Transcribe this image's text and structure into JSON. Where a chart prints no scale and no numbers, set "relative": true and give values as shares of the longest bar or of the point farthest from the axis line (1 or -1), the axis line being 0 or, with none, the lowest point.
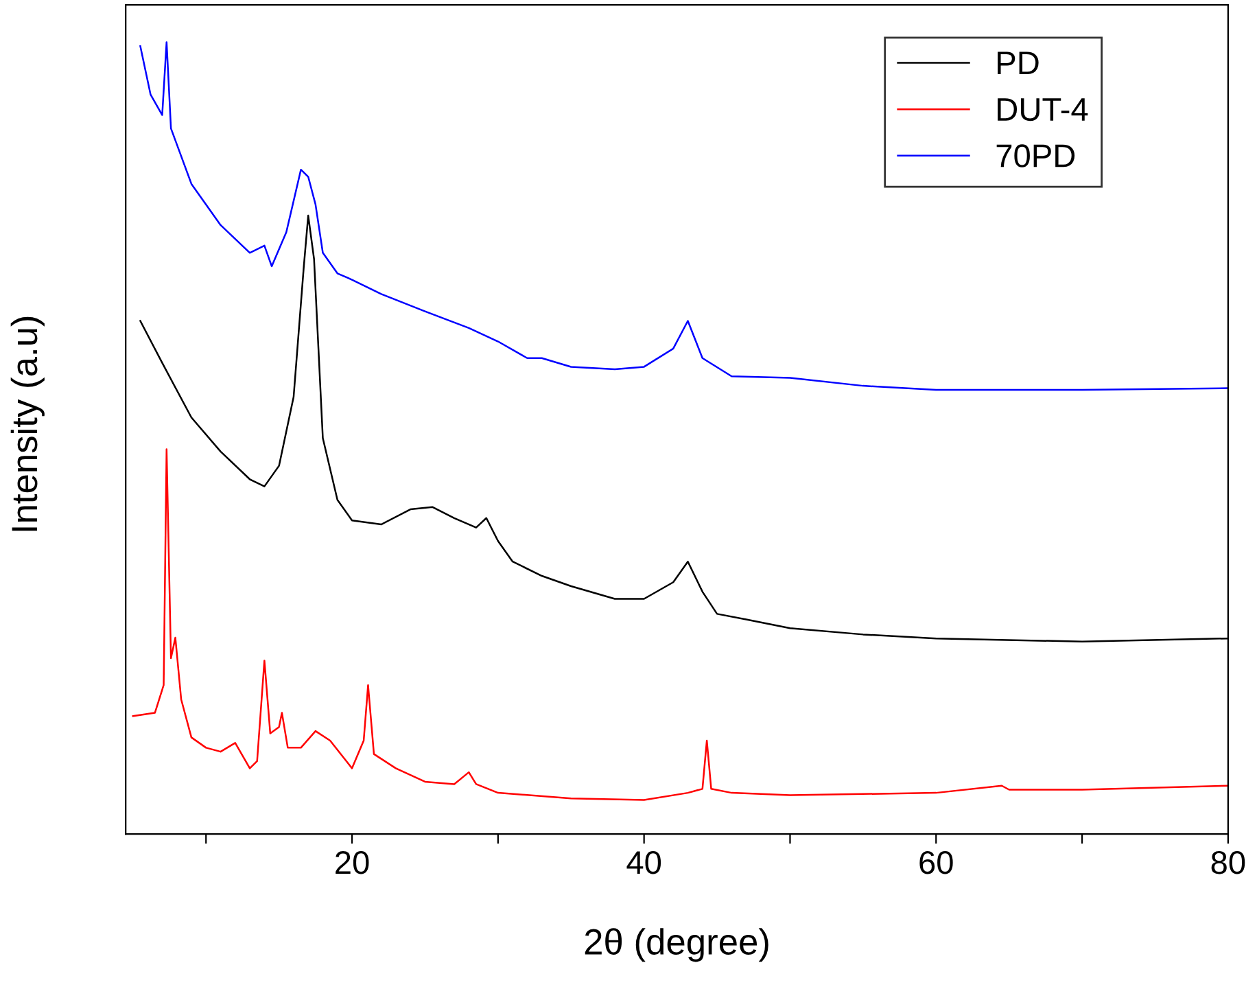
{
  "chart_data": {
    "type": "line",
    "relative": true,
    "xlabel": "2θ (degree)",
    "ylabel": "Intensity (a.u)",
    "xlim": [
      4.5,
      80
    ],
    "xticks": [
      {
        "value": 10,
        "label": null
      },
      20,
      {
        "value": 30,
        "label": null
      },
      40,
      {
        "value": 50,
        "label": null
      },
      60,
      {
        "value": 70,
        "label": null
      },
      80
    ],
    "grid": false,
    "legend": "top right",
    "marker": "none",
    "line_style": "solid",
    "series": [
      {
        "name": "PD",
        "color": "#000000",
        "x": [
          5.5,
          7,
          9,
          11,
          13,
          14,
          15,
          16,
          16.7,
          17,
          17.4,
          18,
          19,
          20,
          22,
          24,
          25.5,
          27,
          28.5,
          29.2,
          30,
          31,
          33,
          35,
          38,
          40,
          42,
          43,
          44,
          45,
          47,
          50,
          55,
          60,
          70,
          80
        ],
        "values": [
          0.648,
          0.595,
          0.526,
          0.483,
          0.448,
          0.439,
          0.465,
          0.552,
          0.717,
          0.781,
          0.726,
          0.5,
          0.422,
          0.396,
          0.391,
          0.41,
          0.413,
          0.399,
          0.387,
          0.399,
          0.37,
          0.344,
          0.326,
          0.313,
          0.297,
          0.297,
          0.318,
          0.344,
          0.306,
          0.278,
          0.271,
          0.26,
          0.252,
          0.247,
          0.243,
          0.247
        ]
      },
      {
        "name": "DUT-4",
        "color": "#ff0000",
        "x": [
          5,
          6.5,
          7.1,
          7.3,
          7.6,
          7.9,
          8.3,
          9,
          10,
          11,
          12,
          13,
          13.5,
          14,
          14.4,
          15,
          15.2,
          15.6,
          16.5,
          17.5,
          18.5,
          20,
          20.8,
          21.1,
          21.5,
          23,
          25,
          27,
          28,
          28.5,
          30,
          35,
          40,
          43,
          44,
          44.3,
          44.6,
          46,
          50,
          60,
          64.5,
          65,
          70,
          80
        ],
        "values": [
          0.149,
          0.153,
          0.188,
          0.486,
          0.222,
          0.248,
          0.17,
          0.122,
          0.109,
          0.104,
          0.115,
          0.083,
          0.092,
          0.219,
          0.127,
          0.135,
          0.153,
          0.109,
          0.109,
          0.13,
          0.118,
          0.083,
          0.118,
          0.188,
          0.101,
          0.083,
          0.066,
          0.063,
          0.078,
          0.063,
          0.052,
          0.045,
          0.043,
          0.052,
          0.057,
          0.118,
          0.057,
          0.052,
          0.049,
          0.052,
          0.061,
          0.056,
          0.056,
          0.061
        ]
      },
      {
        "name": "70PD",
        "color": "#0000ff",
        "x": [
          5.5,
          6.2,
          7,
          7.3,
          7.6,
          9,
          11,
          13,
          14,
          14.5,
          15.5,
          16.5,
          17,
          17.5,
          18,
          19,
          20,
          22,
          25,
          28,
          30,
          32,
          33,
          35,
          38,
          40,
          42,
          43,
          44,
          46,
          50,
          55,
          60,
          70,
          80
        ],
        "values": [
          0.995,
          0.934,
          0.908,
          1.0,
          0.891,
          0.821,
          0.769,
          0.734,
          0.743,
          0.717,
          0.76,
          0.839,
          0.83,
          0.795,
          0.734,
          0.708,
          0.7,
          0.682,
          0.66,
          0.639,
          0.622,
          0.601,
          0.601,
          0.59,
          0.587,
          0.59,
          0.613,
          0.648,
          0.601,
          0.578,
          0.576,
          0.566,
          0.561,
          0.561,
          0.563
        ]
      }
    ]
  }
}
